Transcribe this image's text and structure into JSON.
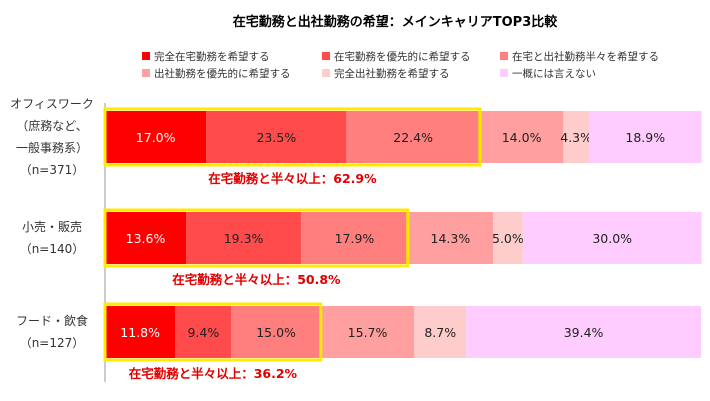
{
  "chart_data": {
    "type": "bar",
    "orientation": "horizontal",
    "stacked": "100%",
    "title": "在宅勤務と出社勤務の希望：メインキャリアTOP3比較",
    "legend_position": "top",
    "series": [
      {
        "name": "完全在宅勤務を希望する",
        "color": "#ff0000",
        "text_color": "#ffffff",
        "values": [
          17.0,
          13.6,
          11.8
        ]
      },
      {
        "name": "在宅勤務を優先的に希望する",
        "color": "#ff4b4b",
        "text_color": "#222222",
        "values": [
          23.5,
          19.3,
          9.4
        ]
      },
      {
        "name": "在宅と出社勤務半々を希望する",
        "color": "#ff7f7f",
        "text_color": "#222222",
        "values": [
          22.4,
          17.9,
          15.0
        ]
      },
      {
        "name": "出社勤務を優先的に希望する",
        "color": "#ff9f9f",
        "text_color": "#222222",
        "values": [
          14.0,
          14.3,
          15.7
        ]
      },
      {
        "name": "完全出社勤務を希望する",
        "color": "#ffcccc",
        "text_color": "#222222",
        "values": [
          4.3,
          5.0,
          8.7
        ]
      },
      {
        "name": "一概には言えない",
        "color": "#ffccff",
        "text_color": "#222222",
        "values": [
          18.9,
          30.0,
          39.4
        ]
      }
    ],
    "categories": [
      {
        "lines": [
          "オフィスワーク",
          "（庶務など、",
          "一般事務系）",
          "（n=371）"
        ],
        "highlight": 62.9,
        "summary": "在宅勤務と半々以上：62.9%"
      },
      {
        "lines": [
          "小売・販売",
          "（n=140）"
        ],
        "highlight": 50.8,
        "summary": "在宅勤務と半々以上：50.8%"
      },
      {
        "lines": [
          "フード・飲食",
          "（n=127）"
        ],
        "highlight": 36.2,
        "summary": "在宅勤務と半々以上：36.2%"
      }
    ],
    "highlight_color": "#ffea00",
    "value_suffix": "%"
  }
}
